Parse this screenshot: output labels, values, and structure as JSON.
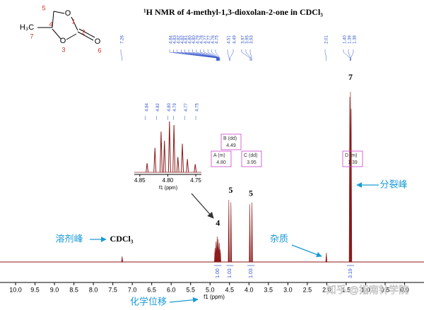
{
  "molecule": {
    "atom_labels": [
      "H₃C",
      "O",
      "O",
      "O"
    ],
    "position_numbers": [
      "5",
      "1",
      "4",
      "2",
      "3",
      "7",
      "6"
    ]
  },
  "chart_data": {
    "type": "spectrum",
    "title": "¹H NMR of 4-methyl-1,3-dioxolan-2-one in CDCl₃",
    "xlabel": "f1 (ppm)",
    "xlim": [
      10.4,
      -0.5
    ],
    "ylim": [
      0,
      100
    ],
    "xticks": [
      {
        "value": 10,
        "label": "10.0"
      },
      9.5,
      {
        "value": 9,
        "label": "9.0"
      },
      8.5,
      {
        "value": 8,
        "label": "8.0"
      },
      7.5,
      {
        "value": 7,
        "label": "7.0"
      },
      6.5,
      {
        "value": 6,
        "label": "6.0"
      },
      5.5,
      {
        "value": 5,
        "label": "5.0"
      },
      4.5,
      {
        "value": 4,
        "label": "4.0"
      },
      3.5,
      {
        "value": 3,
        "label": "3.0"
      },
      2.5,
      {
        "value": 2,
        "label": "2.0"
      },
      1.5,
      {
        "value": 1,
        "label": "1.0"
      },
      0.5,
      {
        "value": 0,
        "label": "0.0"
      }
    ],
    "x": [
      7.26,
      4.8,
      4.49,
      3.95,
      2.01,
      1.39
    ],
    "values": [
      3.3,
      15,
      36.5,
      35,
      5.4,
      100
    ],
    "color": "#8b1a1a",
    "peak_label_groups": [
      [
        "7.26"
      ],
      [
        "4.84",
        "4.83",
        "4.82",
        "4.82",
        "4.81",
        "4.80",
        "4.80",
        "4.79",
        "4.78",
        "4.77",
        "4.77",
        "4.76",
        "4.75"
      ],
      [
        "4.51",
        "4.49"
      ],
      [
        "3.97",
        "3.95",
        "3.93"
      ],
      [
        "2.01"
      ],
      [
        "1.40",
        "1.39",
        "1.38"
      ]
    ],
    "assignments": [
      {
        "x": 1.39,
        "label": "7"
      },
      {
        "x": 4.49,
        "label": "5"
      },
      {
        "x": 3.95,
        "label": "5"
      },
      {
        "x": 4.8,
        "label": "4"
      }
    ],
    "integrals": {
      "x": [
        4.8,
        4.49,
        3.95,
        1.39
      ],
      "values": [
        1,
        1.03,
        1.03,
        3.19
      ],
      "value_labels": [
        "1.00",
        "1.03",
        "1.03",
        "3.19"
      ]
    },
    "multiplets": [
      {
        "label": "A (m)",
        "shift": "4.80"
      },
      {
        "label": "B (dd)",
        "shift": "4.49"
      },
      {
        "label": "C (dd)",
        "shift": "3.95"
      },
      {
        "label": "D (m)",
        "shift": "1.39"
      }
    ],
    "inset": {
      "xlim": [
        4.87,
        4.74
      ],
      "ylim": [
        0,
        100
      ],
      "xticks": [
        4.85,
        {
          "value": 4.8,
          "label": "4.80"
        },
        4.75
      ],
      "xlabel": "f1 (ppm)",
      "peak_labels": [
        "4.84",
        "4.82",
        "4.80",
        "4.79",
        "4.77",
        "4.75"
      ],
      "x": [
        4.837,
        4.823,
        4.812,
        4.806,
        4.797,
        4.789,
        4.782,
        4.774,
        4.765,
        4.751
      ],
      "values": [
        18,
        48,
        80,
        62,
        100,
        93,
        30,
        56,
        26,
        16
      ]
    },
    "notes": {
      "solvent": "溶剂峰",
      "solvent_name": "CDCl₃",
      "impurity": "杂质",
      "splitting": "分裂峰",
      "shift": "化学位移"
    },
    "watermark": "知乎 @指南针学院"
  }
}
